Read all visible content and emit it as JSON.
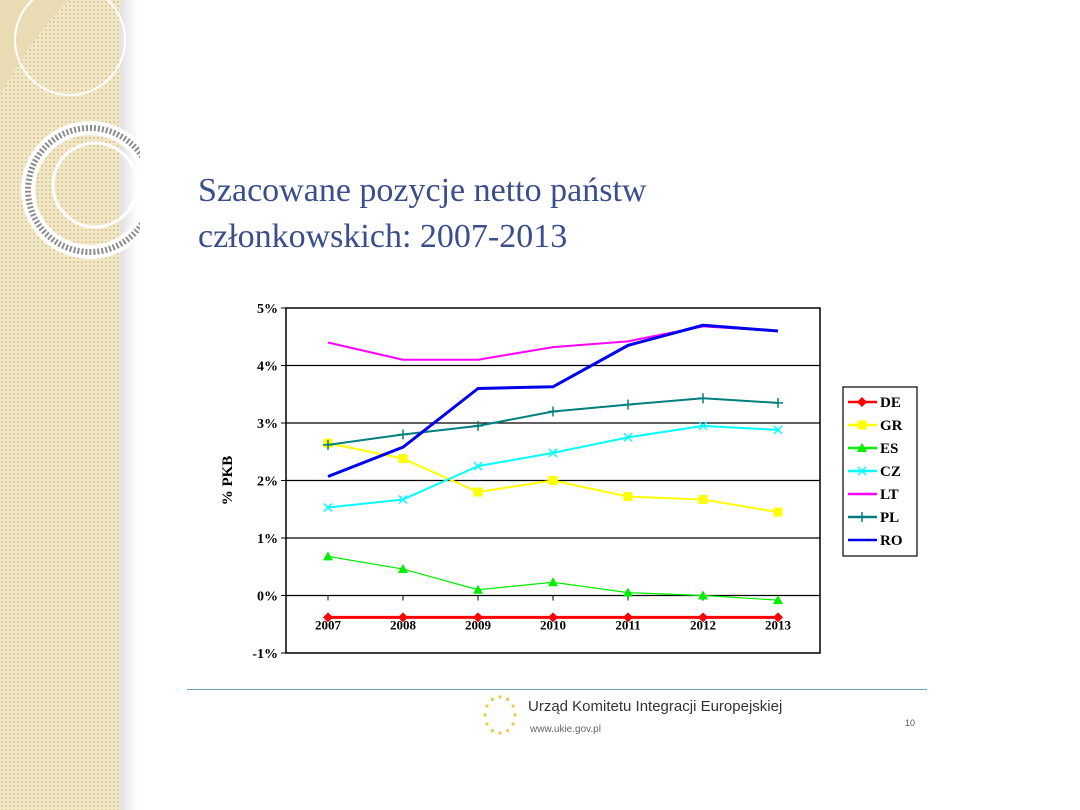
{
  "slide": {
    "title_line1": "Szacowane pozycje netto państw",
    "title_line2": "członkowskich: 2007-2013",
    "footer_org": "Urząd Komitetu Integracji Europejskiej",
    "footer_url": "www.ukie.gov.pl",
    "page_number": "10",
    "colors": {
      "title": "#3a4e8c",
      "divider": "#5fa9b5",
      "left_band": "#f3e8c6"
    }
  },
  "chart_data": {
    "type": "line",
    "title": "",
    "xlabel": "",
    "ylabel": "% PKB",
    "x": [
      "2007",
      "2008",
      "2009",
      "2010",
      "2011",
      "2012",
      "2013"
    ],
    "y_ticks": [
      "5%",
      "4%",
      "3%",
      "2%",
      "1%",
      "0%",
      "-1%"
    ],
    "y_tick_values": [
      5,
      4,
      3,
      2,
      1,
      0,
      -1
    ],
    "ylim": [
      -1,
      5
    ],
    "grid": "horizontal",
    "legend": "right",
    "series": [
      {
        "name": "DE",
        "color": "#ff0000",
        "marker": "diamond",
        "values": [
          -0.38,
          -0.38,
          -0.38,
          -0.38,
          -0.38,
          -0.38,
          -0.38
        ]
      },
      {
        "name": "GR",
        "color": "#ffff00",
        "marker": "square",
        "values": [
          2.65,
          2.38,
          1.8,
          2.0,
          1.72,
          1.67,
          1.45
        ]
      },
      {
        "name": "ES",
        "color": "#00ee00",
        "marker": "triangle",
        "values": [
          0.68,
          0.46,
          0.1,
          0.23,
          0.05,
          0.0,
          -0.08
        ]
      },
      {
        "name": "CZ",
        "color": "#00ffff",
        "marker": "x",
        "values": [
          1.53,
          1.67,
          2.25,
          2.48,
          2.75,
          2.95,
          2.88
        ]
      },
      {
        "name": "LT",
        "color": "#ff00ff",
        "marker": "none",
        "values": [
          4.4,
          4.1,
          4.1,
          4.32,
          4.42,
          4.68,
          4.6
        ]
      },
      {
        "name": "PL",
        "color": "#007f7f",
        "marker": "plus",
        "values": [
          2.62,
          2.8,
          2.95,
          3.2,
          3.32,
          3.43,
          3.35
        ]
      },
      {
        "name": "RO",
        "color": "#0000ee",
        "marker": "none",
        "values": [
          2.07,
          2.58,
          3.6,
          3.63,
          4.35,
          4.7,
          4.6
        ]
      }
    ]
  }
}
